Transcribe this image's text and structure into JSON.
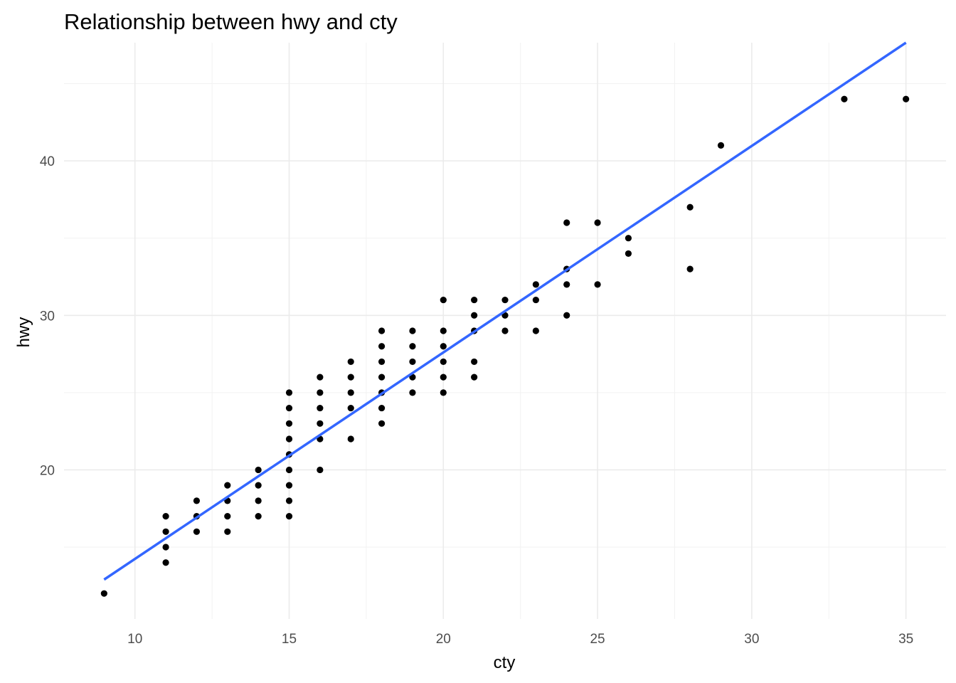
{
  "chart_data": {
    "type": "scatter",
    "title": "Relationship between hwy and cty",
    "xlabel": "cty",
    "ylabel": "hwy",
    "xlim": [
      7.7,
      36.3
    ],
    "ylim": [
      10.35,
      47.65
    ],
    "x_ticks": [
      10,
      15,
      20,
      25,
      30,
      35
    ],
    "y_ticks": [
      20,
      30,
      40
    ],
    "x_tick_labels": [
      "10",
      "15",
      "20",
      "25",
      "30",
      "35"
    ],
    "y_tick_labels": [
      "20",
      "30",
      "40"
    ],
    "grid": true,
    "legend": "none",
    "colors": {
      "points": "#000000",
      "fit_line": "#3366ff",
      "grid": "#ebebeb"
    },
    "points": [
      [
        9,
        12
      ],
      [
        11,
        14
      ],
      [
        11,
        15
      ],
      [
        11,
        16
      ],
      [
        11,
        17
      ],
      [
        12,
        16
      ],
      [
        12,
        17
      ],
      [
        12,
        18
      ],
      [
        13,
        16
      ],
      [
        13,
        17
      ],
      [
        13,
        18
      ],
      [
        13,
        19
      ],
      [
        14,
        17
      ],
      [
        14,
        18
      ],
      [
        14,
        19
      ],
      [
        14,
        20
      ],
      [
        15,
        17
      ],
      [
        15,
        18
      ],
      [
        15,
        19
      ],
      [
        15,
        20
      ],
      [
        15,
        21
      ],
      [
        15,
        22
      ],
      [
        15,
        23
      ],
      [
        15,
        24
      ],
      [
        15,
        25
      ],
      [
        16,
        20
      ],
      [
        16,
        22
      ],
      [
        16,
        23
      ],
      [
        16,
        24
      ],
      [
        16,
        25
      ],
      [
        16,
        26
      ],
      [
        17,
        22
      ],
      [
        17,
        24
      ],
      [
        17,
        25
      ],
      [
        17,
        26
      ],
      [
        17,
        27
      ],
      [
        18,
        23
      ],
      [
        18,
        24
      ],
      [
        18,
        25
      ],
      [
        18,
        26
      ],
      [
        18,
        27
      ],
      [
        18,
        28
      ],
      [
        18,
        29
      ],
      [
        19,
        25
      ],
      [
        19,
        26
      ],
      [
        19,
        27
      ],
      [
        19,
        28
      ],
      [
        19,
        29
      ],
      [
        20,
        25
      ],
      [
        20,
        26
      ],
      [
        20,
        27
      ],
      [
        20,
        28
      ],
      [
        20,
        29
      ],
      [
        20,
        31
      ],
      [
        21,
        26
      ],
      [
        21,
        27
      ],
      [
        21,
        29
      ],
      [
        21,
        30
      ],
      [
        21,
        31
      ],
      [
        22,
        29
      ],
      [
        22,
        30
      ],
      [
        22,
        31
      ],
      [
        23,
        29
      ],
      [
        23,
        31
      ],
      [
        23,
        32
      ],
      [
        24,
        30
      ],
      [
        24,
        32
      ],
      [
        24,
        33
      ],
      [
        24,
        36
      ],
      [
        25,
        32
      ],
      [
        25,
        36
      ],
      [
        26,
        34
      ],
      [
        26,
        35
      ],
      [
        28,
        33
      ],
      [
        28,
        37
      ],
      [
        29,
        41
      ],
      [
        33,
        44
      ],
      [
        35,
        44
      ]
    ],
    "fit_line": {
      "method": "lm",
      "x": [
        9,
        35
      ],
      "y": [
        12.9,
        47.65
      ]
    }
  }
}
